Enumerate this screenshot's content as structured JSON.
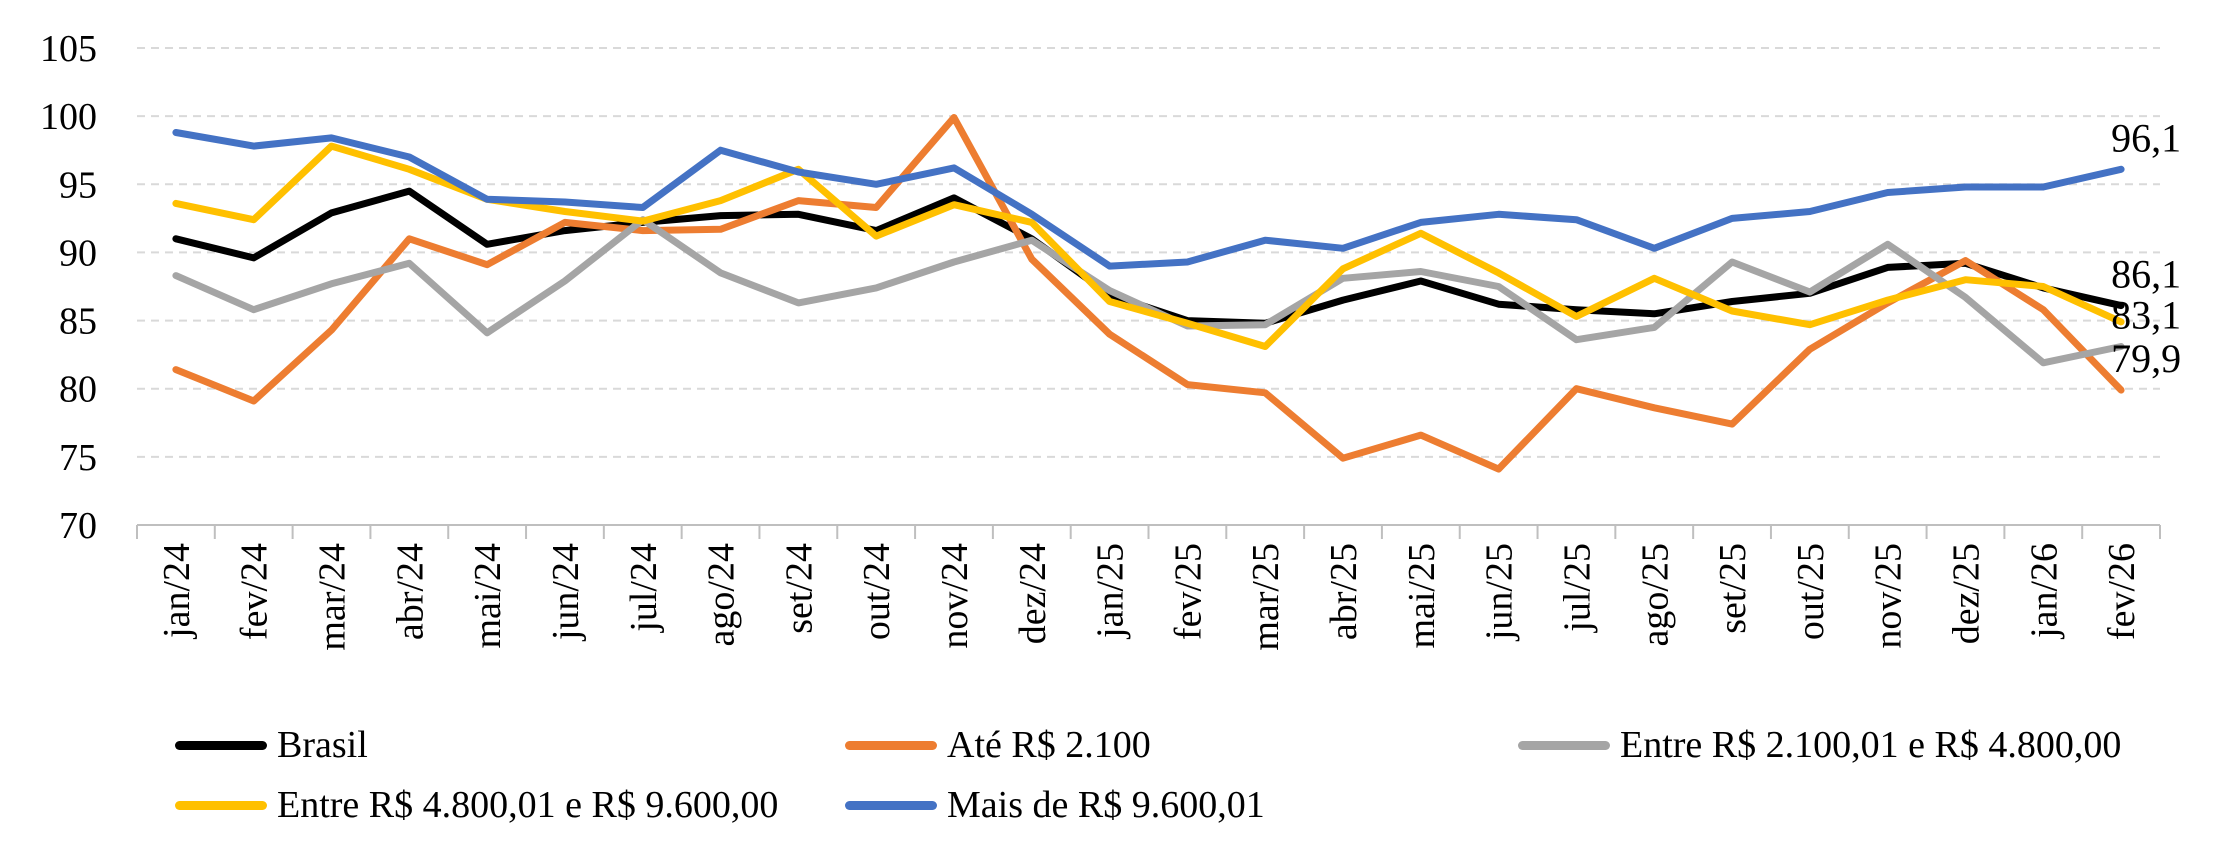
{
  "chart_data": {
    "type": "line",
    "title": "",
    "xlabel": "",
    "ylabel": "",
    "ylim": [
      70,
      105
    ],
    "yticks": [
      70,
      75,
      80,
      85,
      90,
      95,
      100,
      105
    ],
    "grid": true,
    "legend_position": "bottom",
    "categories": [
      "jan/24",
      "fev/24",
      "mar/24",
      "abr/24",
      "mai/24",
      "jun/24",
      "jul/24",
      "ago/24",
      "set/24",
      "out/24",
      "nov/24",
      "dez/24",
      "jan/25",
      "fev/25",
      "mar/25",
      "abr/25",
      "mai/25",
      "jun/25",
      "jul/25",
      "ago/25",
      "set/25",
      "out/25",
      "nov/25",
      "dez/25",
      "jan/26",
      "fev/26"
    ],
    "series": [
      {
        "name": "Brasil",
        "color": "#000000",
        "values": [
          91.0,
          89.6,
          92.9,
          94.5,
          90.6,
          91.6,
          92.2,
          92.7,
          92.8,
          91.6,
          94.0,
          91.0,
          86.9,
          85.0,
          84.8,
          86.5,
          87.9,
          86.2,
          85.8,
          85.5,
          86.4,
          87.0,
          88.9,
          89.2,
          87.4,
          86.1
        ]
      },
      {
        "name": "Até R$ 2.100",
        "color": "#ED7D31",
        "values": [
          81.4,
          79.1,
          84.3,
          91.0,
          89.1,
          92.2,
          91.6,
          91.7,
          93.8,
          93.3,
          99.9,
          89.5,
          84.0,
          80.3,
          79.7,
          74.9,
          76.6,
          74.1,
          80.0,
          78.6,
          77.4,
          82.9,
          86.3,
          89.4,
          85.8,
          79.9
        ]
      },
      {
        "name": "Entre R$ 2.100,01 e R$ 4.800,00",
        "color": "#A5A5A5",
        "values": [
          88.3,
          85.8,
          87.7,
          89.2,
          84.1,
          87.9,
          92.4,
          88.5,
          86.3,
          87.4,
          89.3,
          90.9,
          87.2,
          84.6,
          84.7,
          88.1,
          88.6,
          87.5,
          83.6,
          84.5,
          89.3,
          87.1,
          90.6,
          86.7,
          81.9,
          83.1
        ]
      },
      {
        "name": "Entre R$ 4.800,01 e R$ 9.600,00",
        "color": "#FFC000",
        "values": [
          93.6,
          92.4,
          97.8,
          96.1,
          93.9,
          93.0,
          92.3,
          93.8,
          96.1,
          91.2,
          93.5,
          92.2,
          86.4,
          84.8,
          83.1,
          88.8,
          91.4,
          88.5,
          85.3,
          88.1,
          85.7,
          84.7,
          86.5,
          88.0,
          87.5,
          84.9
        ]
      },
      {
        "name": "Mais de R$ 9.600,01",
        "color": "#4472C4",
        "values": [
          98.8,
          97.8,
          98.4,
          97.0,
          93.9,
          93.7,
          93.3,
          97.5,
          95.9,
          95.0,
          96.2,
          92.8,
          89.0,
          89.3,
          90.9,
          90.3,
          92.2,
          92.8,
          92.4,
          90.3,
          92.5,
          93.0,
          94.4,
          94.8,
          94.8,
          96.1
        ]
      }
    ],
    "annotations": [
      {
        "text": "96,1",
        "value": 96.1
      },
      {
        "text": "86,1",
        "value": 86.1
      },
      {
        "text": "83,1",
        "value": 83.1
      },
      {
        "text": "79,9",
        "value": 79.9
      }
    ]
  }
}
